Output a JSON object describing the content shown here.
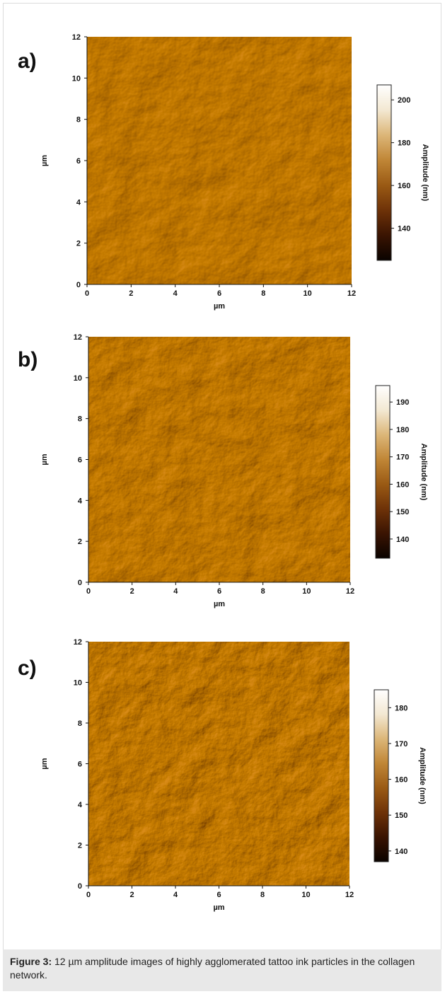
{
  "figure": {
    "caption_label": "Figure 3:",
    "caption_text": " 12 µm amplitude images of highly agglomerated tattoo ink particles in the collagen network."
  },
  "panels": [
    {
      "label": "a)",
      "x_axis_label": "µm",
      "y_axis_label": "µm",
      "colorbar_label": "Amplitude (nm)",
      "colorbar_ticks": [
        140,
        160,
        180,
        200
      ],
      "colorbar_range": [
        125,
        207
      ]
    },
    {
      "label": "b)",
      "x_axis_label": "µm",
      "y_axis_label": "µm",
      "colorbar_label": "Amplitude (nm)",
      "colorbar_ticks": [
        140,
        150,
        160,
        170,
        180,
        190
      ],
      "colorbar_range": [
        133,
        196
      ]
    },
    {
      "label": "c)",
      "x_axis_label": "µm",
      "y_axis_label": "µm",
      "colorbar_label": "Amplitude (nm)",
      "colorbar_ticks": [
        140,
        150,
        160,
        170,
        180
      ],
      "colorbar_range": [
        137,
        185
      ]
    }
  ],
  "chart_data": [
    {
      "type": "heatmap",
      "xlabel": "µm",
      "ylabel": "µm",
      "xlim": [
        0,
        12
      ],
      "ylim": [
        0,
        12
      ],
      "xticks": [
        0,
        2,
        4,
        6,
        8,
        10,
        12
      ],
      "yticks": [
        0,
        2,
        4,
        6,
        8,
        10,
        12
      ],
      "colorbar": {
        "label": "Amplitude (nm)",
        "range": [
          125,
          207
        ],
        "ticks": [
          140,
          160,
          180,
          200
        ]
      }
    },
    {
      "type": "heatmap",
      "xlabel": "µm",
      "ylabel": "µm",
      "xlim": [
        0,
        12
      ],
      "ylim": [
        0,
        12
      ],
      "xticks": [
        0,
        2,
        4,
        6,
        8,
        10,
        12
      ],
      "yticks": [
        0,
        2,
        4,
        6,
        8,
        10,
        12
      ],
      "colorbar": {
        "label": "Amplitude (nm)",
        "range": [
          133,
          196
        ],
        "ticks": [
          140,
          150,
          160,
          170,
          180,
          190
        ]
      }
    },
    {
      "type": "heatmap",
      "xlabel": "µm",
      "ylabel": "µm",
      "xlim": [
        0,
        12
      ],
      "ylim": [
        0,
        12
      ],
      "xticks": [
        0,
        2,
        4,
        6,
        8,
        10,
        12
      ],
      "yticks": [
        0,
        2,
        4,
        6,
        8,
        10,
        12
      ],
      "colorbar": {
        "label": "Amplitude (nm)",
        "range": [
          137,
          185
        ],
        "ticks": [
          140,
          150,
          160,
          170,
          180
        ]
      }
    }
  ],
  "colors": {
    "colormap": [
      "#0a0300",
      "#3a1402",
      "#6e3208",
      "#9a5a14",
      "#c08636",
      "#dcb678",
      "#f3e8d2",
      "#ffffff"
    ]
  }
}
